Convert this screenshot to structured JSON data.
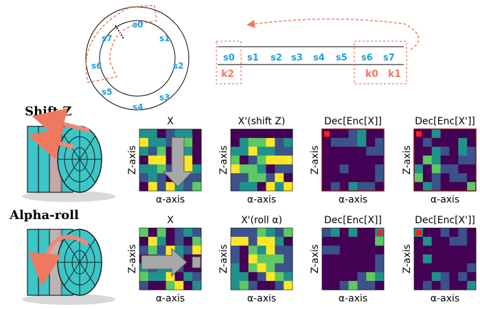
{
  "ring": {
    "labels": [
      "s0",
      "s1",
      "s2",
      "s3",
      "s4",
      "s5",
      "s6",
      "s7"
    ]
  },
  "sequence": {
    "tokens": [
      "s0",
      "s1",
      "s2",
      "s3",
      "s4",
      "s5",
      "s6",
      "s7"
    ],
    "keys": [
      "k2",
      "k0",
      "k1"
    ]
  },
  "rows": [
    {
      "title": "Shift Z",
      "panels": [
        {
          "title": "X",
          "xlabel": "α-axis",
          "ylabel": "Z-axis"
        },
        {
          "title": "X'(shift Z)",
          "xlabel": "α-axis",
          "ylabel": "Z-axis"
        },
        {
          "title": "Dec[Enc[X]]",
          "xlabel": "α-axis",
          "ylabel": "Z-axis"
        },
        {
          "title": "Dec[Enc[X']]",
          "xlabel": "α-axis",
          "ylabel": "Z-axis"
        }
      ]
    },
    {
      "title": "Alpha-roll",
      "panels": [
        {
          "title": "X",
          "xlabel": "α-axis",
          "ylabel": "Z-axis"
        },
        {
          "title": "X'(roll α)",
          "xlabel": "α-axis",
          "ylabel": "Z-axis"
        },
        {
          "title": "Dec[Enc[X]]",
          "xlabel": "α-axis",
          "ylabel": "Z-axis"
        },
        {
          "title": "Dec[Enc[X']]",
          "xlabel": "α-axis",
          "ylabel": "Z-axis"
        }
      ]
    }
  ],
  "colors": {
    "accent_red": "#f07860",
    "ring_text": "#1aa0dc",
    "cylinder": "#3cc6c8",
    "viridis": [
      "#440154",
      "#3b528b",
      "#21918c",
      "#5ec962",
      "#fde725"
    ]
  }
}
